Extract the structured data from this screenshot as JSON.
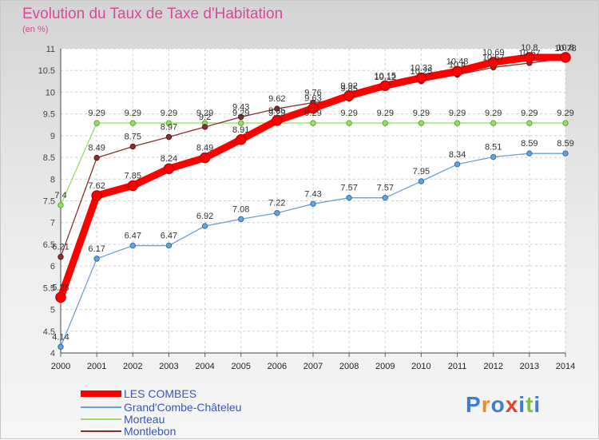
{
  "chart_data": {
    "type": "line",
    "title": "Evolution du Taux de Taxe d'Habitation",
    "subtitle": "(en %)",
    "x": [
      "2000",
      "2001",
      "2002",
      "2003",
      "2004",
      "2005",
      "2006",
      "2007",
      "2008",
      "2009",
      "2010",
      "2011",
      "2012",
      "2013",
      "2014"
    ],
    "ylim": [
      4,
      11
    ],
    "yticks": [
      "4",
      "4.5",
      "5",
      "5.5",
      "6",
      "6.5",
      "7",
      "7.5",
      "8",
      "8.5",
      "9",
      "9.5",
      "10",
      "10.5",
      "11"
    ],
    "grid": true,
    "legend_position": "bottom-left",
    "series": [
      {
        "name": "LES COMBES",
        "color": "#ff0000",
        "values": [
          5.28,
          7.62,
          7.85,
          8.24,
          8.49,
          8.91,
          9.35,
          9.63,
          9.92,
          10.15,
          10.33,
          10.48,
          10.69,
          10.8,
          10.8
        ]
      },
      {
        "name": "Grand'Combe-Châteleu",
        "color": "#6aa0d8",
        "values": [
          4.14,
          6.17,
          6.47,
          6.47,
          6.92,
          7.08,
          7.22,
          7.43,
          7.57,
          7.57,
          7.95,
          8.34,
          8.51,
          8.59,
          8.59
        ]
      },
      {
        "name": "Morteau",
        "color": "#99dd66",
        "values": [
          7.4,
          9.29,
          9.29,
          9.29,
          9.29,
          9.29,
          9.29,
          9.29,
          9.29,
          9.29,
          9.29,
          9.29,
          9.29,
          9.29,
          9.29
        ]
      },
      {
        "name": "Montlebon",
        "color": "#8b2e2e",
        "values": [
          6.21,
          8.49,
          8.75,
          8.97,
          9.2,
          9.43,
          9.62,
          9.76,
          9.85,
          10.12,
          10.25,
          10.4,
          10.57,
          10.67,
          10.78
        ]
      }
    ]
  },
  "logo": {
    "text": "Proxiti"
  }
}
